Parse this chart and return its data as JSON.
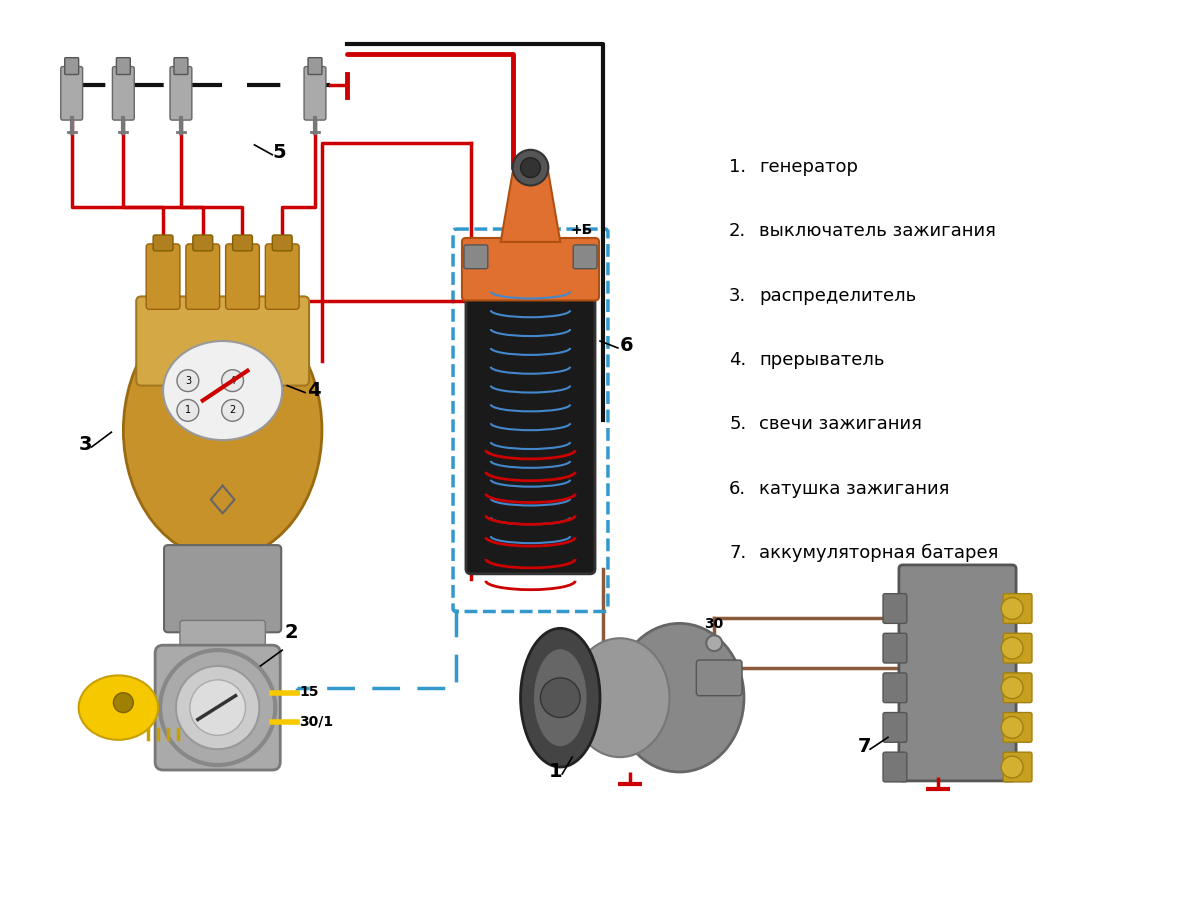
{
  "background_color": "#ffffff",
  "legend_items": [
    {
      "num": "1.",
      "text": "генератор"
    },
    {
      "num": "2.",
      "text": "выключатель зажигания"
    },
    {
      "num": "3.",
      "text": "распределитель"
    },
    {
      "num": "4.",
      "text": "прерыватель"
    },
    {
      "num": "5.",
      "text": "свечи зажигания"
    },
    {
      "num": "6.",
      "text": "катушка зажигания"
    },
    {
      "num": "7.",
      "text": "аккумуляторная батарея"
    }
  ],
  "fig_width": 12.0,
  "fig_height": 9.0,
  "dpi": 100,
  "wire_colors": {
    "red": "#cc0000",
    "black": "#111111",
    "blue_dashed": "#3399cc",
    "brown": "#8b5a3a"
  }
}
